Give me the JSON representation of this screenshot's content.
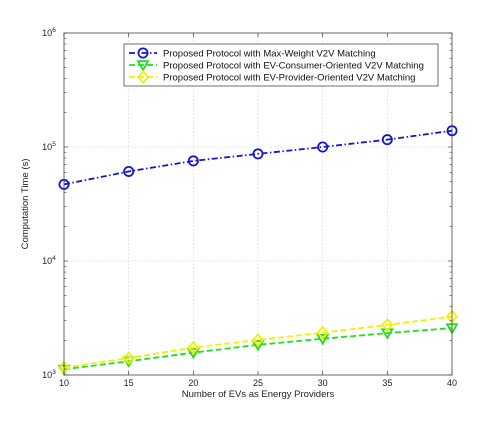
{
  "chart_data": {
    "type": "line",
    "title": "",
    "xlabel": "Number of EVs as Energy Providers",
    "ylabel": "Computation Time (s)",
    "yscale": "log",
    "xlim": [
      10,
      40
    ],
    "ylim": [
      1000,
      1000000
    ],
    "grid": true,
    "legend_position": "top-right",
    "x": [
      10,
      15,
      20,
      25,
      30,
      35,
      40
    ],
    "x_ticks": [
      "10",
      "15",
      "20",
      "25",
      "30",
      "35",
      "40"
    ],
    "y_ticks": [
      {
        "value": 1000,
        "base": "10",
        "exp": "3"
      },
      {
        "value": 10000,
        "base": "10",
        "exp": "4"
      },
      {
        "value": 100000,
        "base": "10",
        "exp": "5"
      },
      {
        "value": 1000000,
        "base": "10",
        "exp": "6"
      }
    ],
    "series": [
      {
        "name": "Proposed Protocol with Max-Weight V2V Matching",
        "values": [
          47000,
          61000,
          75500,
          87000,
          100000,
          116000,
          139000
        ],
        "color": "#1515d0",
        "linestyle": "dash-dot",
        "marker": "circle"
      },
      {
        "name": "Proposed Protocol with EV-Consumer-Oriented V2V Matching",
        "values": [
          1120,
          1320,
          1570,
          1840,
          2080,
          2330,
          2580
        ],
        "color": "#22dd22",
        "linestyle": "dashed",
        "marker": "triangle-down"
      },
      {
        "name": "Proposed Protocol with EV-Provider-Oriented V2V Matching",
        "values": [
          1160,
          1410,
          1740,
          2030,
          2350,
          2750,
          3250
        ],
        "color": "#f0f000",
        "linestyle": "dashed",
        "marker": "diamond"
      }
    ]
  }
}
